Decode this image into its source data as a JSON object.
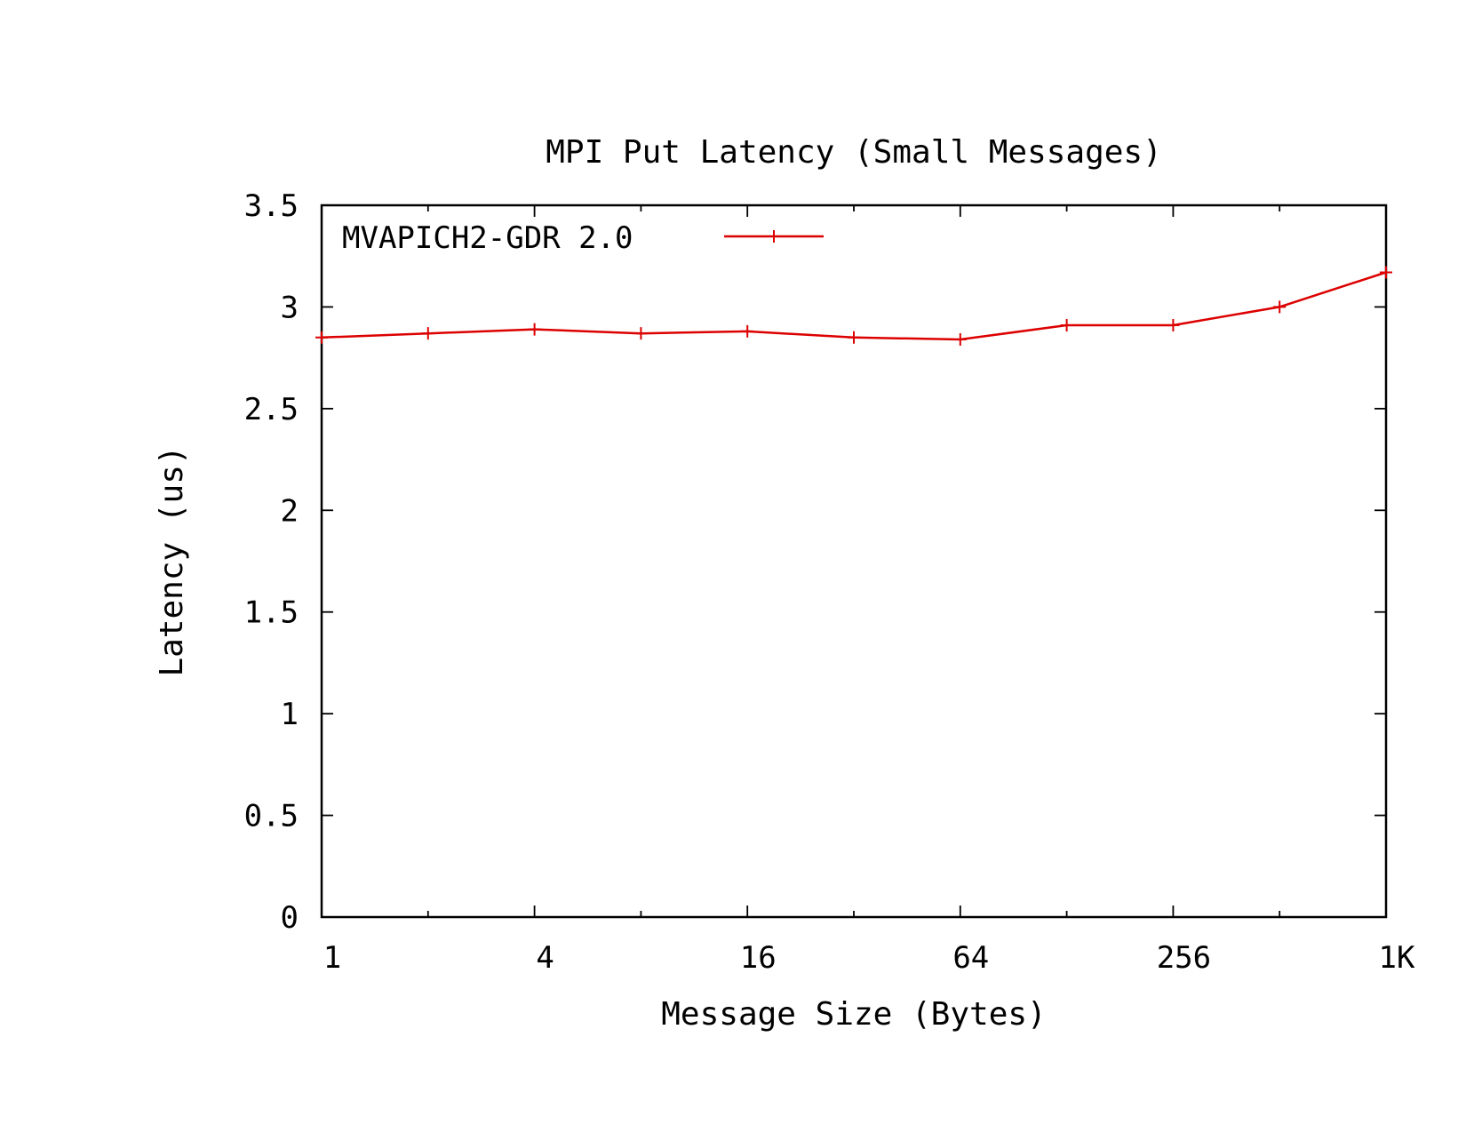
{
  "chart_data": {
    "type": "line",
    "title": "MPI Put Latency (Small Messages)",
    "xlabel": "Message Size (Bytes)",
    "ylabel": "Latency (us)",
    "x_scale": "log2",
    "xlim": [
      1,
      1024
    ],
    "ylim": [
      0,
      3.5
    ],
    "x_ticks": [
      {
        "value": 1,
        "label": "1"
      },
      {
        "value": 4,
        "label": "4"
      },
      {
        "value": 16,
        "label": "16"
      },
      {
        "value": 64,
        "label": "64"
      },
      {
        "value": 256,
        "label": "256"
      },
      {
        "value": 1024,
        "label": "1K"
      }
    ],
    "x_minor_ticks": [
      2,
      8,
      32,
      128,
      512
    ],
    "y_ticks": [
      {
        "value": 0,
        "label": "0"
      },
      {
        "value": 0.5,
        "label": "0.5"
      },
      {
        "value": 1,
        "label": "1"
      },
      {
        "value": 1.5,
        "label": "1.5"
      },
      {
        "value": 2,
        "label": "2"
      },
      {
        "value": 2.5,
        "label": "2.5"
      },
      {
        "value": 3,
        "label": "3"
      },
      {
        "value": 3.5,
        "label": "3.5"
      }
    ],
    "grid": false,
    "legend_position": "top-left",
    "series": [
      {
        "name": "MVAPICH2-GDR 2.0",
        "color": "#dd0000",
        "marker": "plus",
        "x": [
          1,
          2,
          4,
          8,
          16,
          32,
          64,
          128,
          256,
          512,
          1024
        ],
        "y": [
          2.85,
          2.87,
          2.89,
          2.87,
          2.88,
          2.85,
          2.84,
          2.91,
          2.91,
          3.0,
          3.17
        ]
      }
    ]
  }
}
